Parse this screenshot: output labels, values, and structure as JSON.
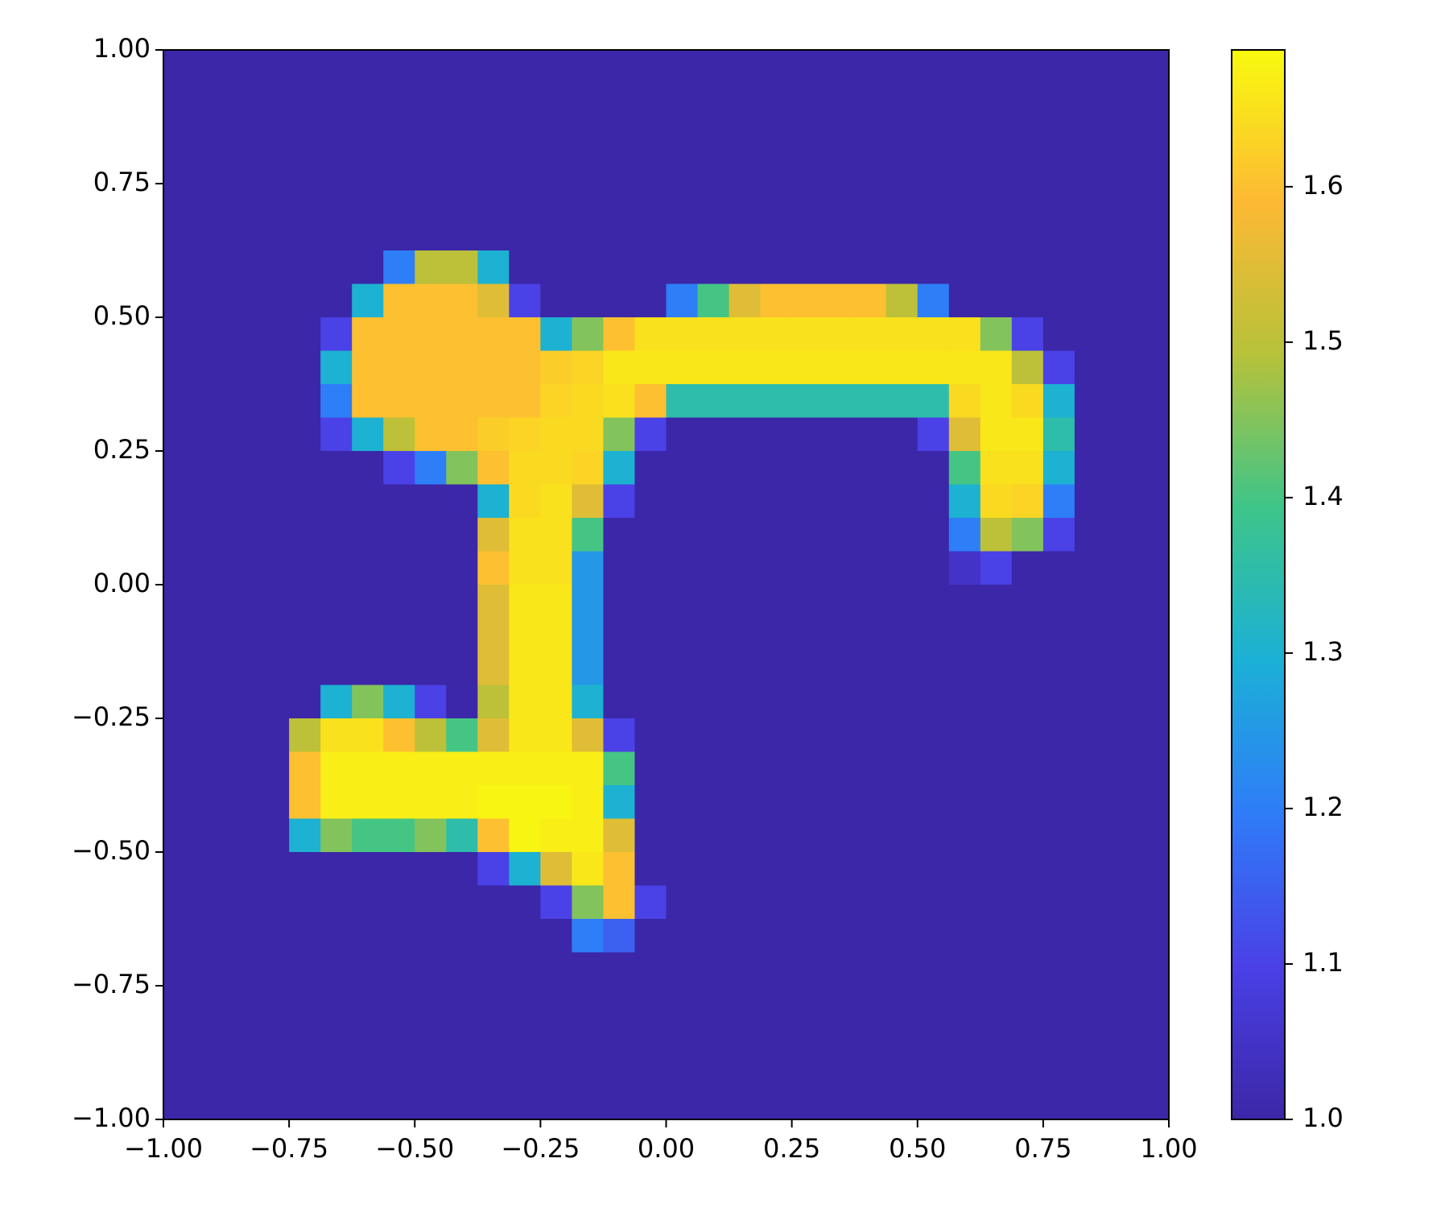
{
  "chart_data": {
    "type": "heatmap",
    "xlim": [
      -1,
      1
    ],
    "ylim": [
      -1,
      1
    ],
    "xticks": [
      {
        "value": -1,
        "label": "−1.00"
      },
      {
        "value": -0.75,
        "label": "−0.75"
      },
      {
        "value": -0.5,
        "label": "−0.50"
      },
      {
        "value": -0.25,
        "label": "−0.25"
      },
      {
        "value": 0,
        "label": "0.00"
      },
      0.25,
      {
        "value": 0.5,
        "label": "0.50"
      },
      0.75,
      {
        "value": 1,
        "label": "1.00"
      }
    ],
    "yticks": [
      {
        "value": -1,
        "label": "−1.00"
      },
      {
        "value": -0.75,
        "label": "−0.75"
      },
      {
        "value": -0.5,
        "label": "−0.50"
      },
      {
        "value": -0.25,
        "label": "−0.25"
      },
      {
        "value": 0,
        "label": "0.00"
      },
      0.25,
      {
        "value": 0.5,
        "label": "0.50"
      },
      0.75,
      {
        "value": 1,
        "label": "1.00"
      }
    ],
    "colormap": [
      "#3b27a7",
      "#4a40e6",
      "#2f7cf8",
      "#1bb0d6",
      "#3dc58a",
      "#b6c23a",
      "#fdb934",
      "#f8fa0f"
    ],
    "colorbar": {
      "lim": [
        1.0,
        1.688
      ],
      "ticks": [
        {
          "value": 1.0,
          "label": "1.0"
        },
        1.1,
        1.2,
        1.3,
        1.4,
        1.5,
        1.6
      ]
    },
    "z": [
      [
        1,
        1,
        1,
        1,
        1,
        1,
        1,
        1,
        1,
        1,
        1,
        1,
        1,
        1,
        1,
        1,
        1,
        1,
        1,
        1,
        1,
        1,
        1,
        1,
        1,
        1,
        1,
        1,
        1,
        1,
        1,
        1
      ],
      [
        1,
        1,
        1,
        1,
        1,
        1,
        1,
        1,
        1,
        1,
        1,
        1,
        1,
        1,
        1,
        1,
        1,
        1,
        1,
        1,
        1,
        1,
        1,
        1,
        1,
        1,
        1,
        1,
        1,
        1,
        1,
        1
      ],
      [
        1,
        1,
        1,
        1,
        1,
        1,
        1,
        1,
        1,
        1,
        1,
        1,
        1,
        1,
        1,
        1,
        1,
        1,
        1,
        1,
        1,
        1,
        1,
        1,
        1,
        1,
        1,
        1,
        1,
        1,
        1,
        1
      ],
      [
        1,
        1,
        1,
        1,
        1,
        1,
        1,
        1,
        1,
        1,
        1,
        1,
        1,
        1,
        1,
        1,
        1,
        1,
        1,
        1,
        1,
        1,
        1,
        1,
        1,
        1,
        1,
        1,
        1,
        1,
        1,
        1
      ],
      [
        1,
        1,
        1,
        1,
        1,
        1,
        1,
        1,
        1,
        1,
        1,
        1,
        1,
        1,
        1,
        1,
        1,
        1,
        1,
        1,
        1,
        1,
        1,
        1,
        1,
        1,
        1,
        1,
        1,
        1,
        1,
        1
      ],
      [
        1,
        1,
        1,
        1,
        1,
        1,
        1,
        1,
        1,
        1,
        1,
        1,
        1,
        1,
        1,
        1,
        1,
        1,
        1,
        1,
        1,
        1,
        1,
        1,
        1,
        1,
        1,
        1,
        1,
        1,
        1,
        1
      ],
      [
        1,
        1,
        1,
        1,
        1,
        1,
        1,
        1.2,
        1.5,
        1.5,
        1.3,
        1,
        1,
        1,
        1,
        1,
        1,
        1,
        1,
        1,
        1,
        1,
        1,
        1,
        1,
        1,
        1,
        1,
        1,
        1,
        1,
        1
      ],
      [
        1,
        1,
        1,
        1,
        1,
        1,
        1.3,
        1.6,
        1.6,
        1.6,
        1.55,
        1.1,
        1,
        1,
        1,
        1,
        1.2,
        1.4,
        1.55,
        1.6,
        1.6,
        1.6,
        1.6,
        1.5,
        1.2,
        1,
        1,
        1,
        1,
        1,
        1,
        1
      ],
      [
        1,
        1,
        1,
        1,
        1,
        1.1,
        1.6,
        1.6,
        1.6,
        1.6,
        1.6,
        1.6,
        1.3,
        1.45,
        1.6,
        1.65,
        1.65,
        1.65,
        1.65,
        1.65,
        1.65,
        1.65,
        1.65,
        1.65,
        1.65,
        1.65,
        1.45,
        1.1,
        1,
        1,
        1,
        1
      ],
      [
        1,
        1,
        1,
        1,
        1,
        1.3,
        1.6,
        1.6,
        1.6,
        1.6,
        1.6,
        1.6,
        1.62,
        1.63,
        1.66,
        1.66,
        1.66,
        1.66,
        1.66,
        1.66,
        1.66,
        1.66,
        1.66,
        1.66,
        1.66,
        1.66,
        1.66,
        1.5,
        1.1,
        1,
        1,
        1
      ],
      [
        1,
        1,
        1,
        1,
        1,
        1.2,
        1.6,
        1.6,
        1.6,
        1.6,
        1.6,
        1.6,
        1.63,
        1.64,
        1.65,
        1.6,
        1.35,
        1.35,
        1.35,
        1.35,
        1.35,
        1.35,
        1.35,
        1.35,
        1.35,
        1.64,
        1.66,
        1.64,
        1.3,
        1,
        1,
        1
      ],
      [
        1,
        1,
        1,
        1,
        1,
        1.1,
        1.3,
        1.5,
        1.6,
        1.6,
        1.62,
        1.63,
        1.64,
        1.64,
        1.45,
        1.1,
        1,
        1,
        1,
        1,
        1,
        1,
        1,
        1,
        1.1,
        1.55,
        1.66,
        1.66,
        1.35,
        1,
        1,
        1
      ],
      [
        1,
        1,
        1,
        1,
        1,
        1,
        1,
        1.1,
        1.2,
        1.45,
        1.6,
        1.64,
        1.64,
        1.63,
        1.3,
        1,
        1,
        1,
        1,
        1,
        1,
        1,
        1,
        1,
        1,
        1.4,
        1.65,
        1.65,
        1.3,
        1,
        1,
        1
      ],
      [
        1,
        1,
        1,
        1,
        1,
        1,
        1,
        1,
        1,
        1,
        1.3,
        1.64,
        1.65,
        1.55,
        1.1,
        1,
        1,
        1,
        1,
        1,
        1,
        1,
        1,
        1,
        1,
        1.3,
        1.64,
        1.63,
        1.2,
        1,
        1,
        1
      ],
      [
        1,
        1,
        1,
        1,
        1,
        1,
        1,
        1,
        1,
        1,
        1.55,
        1.65,
        1.65,
        1.4,
        1,
        1,
        1,
        1,
        1,
        1,
        1,
        1,
        1,
        1,
        1,
        1.2,
        1.5,
        1.45,
        1.1,
        1,
        1,
        1
      ],
      [
        1,
        1,
        1,
        1,
        1,
        1,
        1,
        1,
        1,
        1,
        1.6,
        1.65,
        1.65,
        1.25,
        1,
        1,
        1,
        1,
        1,
        1,
        1,
        1,
        1,
        1,
        1,
        1.05,
        1.1,
        1,
        1,
        1,
        1,
        1
      ],
      [
        1,
        1,
        1,
        1,
        1,
        1,
        1,
        1,
        1,
        1,
        1.55,
        1.66,
        1.66,
        1.25,
        1,
        1,
        1,
        1,
        1,
        1,
        1,
        1,
        1,
        1,
        1,
        1,
        1,
        1,
        1,
        1,
        1,
        1
      ],
      [
        1,
        1,
        1,
        1,
        1,
        1,
        1,
        1,
        1,
        1,
        1.55,
        1.66,
        1.66,
        1.25,
        1,
        1,
        1,
        1,
        1,
        1,
        1,
        1,
        1,
        1,
        1,
        1,
        1,
        1,
        1,
        1,
        1,
        1
      ],
      [
        1,
        1,
        1,
        1,
        1,
        1,
        1,
        1,
        1,
        1,
        1.55,
        1.66,
        1.66,
        1.25,
        1,
        1,
        1,
        1,
        1,
        1,
        1,
        1,
        1,
        1,
        1,
        1,
        1,
        1,
        1,
        1,
        1,
        1
      ],
      [
        1,
        1,
        1,
        1,
        1,
        1.3,
        1.45,
        1.3,
        1.1,
        1,
        1.5,
        1.66,
        1.66,
        1.3,
        1,
        1,
        1,
        1,
        1,
        1,
        1,
        1,
        1,
        1,
        1,
        1,
        1,
        1,
        1,
        1,
        1,
        1
      ],
      [
        1,
        1,
        1,
        1,
        1.5,
        1.65,
        1.65,
        1.6,
        1.5,
        1.4,
        1.55,
        1.66,
        1.66,
        1.55,
        1.1,
        1,
        1,
        1,
        1,
        1,
        1,
        1,
        1,
        1,
        1,
        1,
        1,
        1,
        1,
        1,
        1,
        1
      ],
      [
        1,
        1,
        1,
        1,
        1.6,
        1.67,
        1.67,
        1.67,
        1.67,
        1.67,
        1.67,
        1.67,
        1.67,
        1.67,
        1.4,
        1,
        1,
        1,
        1,
        1,
        1,
        1,
        1,
        1,
        1,
        1,
        1,
        1,
        1,
        1,
        1,
        1
      ],
      [
        1,
        1,
        1,
        1,
        1.6,
        1.67,
        1.67,
        1.67,
        1.67,
        1.67,
        1.68,
        1.68,
        1.68,
        1.67,
        1.3,
        1,
        1,
        1,
        1,
        1,
        1,
        1,
        1,
        1,
        1,
        1,
        1,
        1,
        1,
        1,
        1,
        1
      ],
      [
        1,
        1,
        1,
        1,
        1.3,
        1.45,
        1.4,
        1.4,
        1.45,
        1.35,
        1.6,
        1.68,
        1.67,
        1.67,
        1.55,
        1,
        1,
        1,
        1,
        1,
        1,
        1,
        1,
        1,
        1,
        1,
        1,
        1,
        1,
        1,
        1,
        1
      ],
      [
        1,
        1,
        1,
        1,
        1,
        1,
        1,
        1,
        1,
        1,
        1.1,
        1.3,
        1.55,
        1.66,
        1.6,
        1,
        1,
        1,
        1,
        1,
        1,
        1,
        1,
        1,
        1,
        1,
        1,
        1,
        1,
        1,
        1,
        1
      ],
      [
        1,
        1,
        1,
        1,
        1,
        1,
        1,
        1,
        1,
        1,
        1,
        1,
        1.1,
        1.45,
        1.6,
        1.1,
        1,
        1,
        1,
        1,
        1,
        1,
        1,
        1,
        1,
        1,
        1,
        1,
        1,
        1,
        1,
        1
      ],
      [
        1,
        1,
        1,
        1,
        1,
        1,
        1,
        1,
        1,
        1,
        1,
        1,
        1,
        1.2,
        1.15,
        1,
        1,
        1,
        1,
        1,
        1,
        1,
        1,
        1,
        1,
        1,
        1,
        1,
        1,
        1,
        1,
        1
      ],
      [
        1,
        1,
        1,
        1,
        1,
        1,
        1,
        1,
        1,
        1,
        1,
        1,
        1,
        1,
        1,
        1,
        1,
        1,
        1,
        1,
        1,
        1,
        1,
        1,
        1,
        1,
        1,
        1,
        1,
        1,
        1,
        1
      ],
      [
        1,
        1,
        1,
        1,
        1,
        1,
        1,
        1,
        1,
        1,
        1,
        1,
        1,
        1,
        1,
        1,
        1,
        1,
        1,
        1,
        1,
        1,
        1,
        1,
        1,
        1,
        1,
        1,
        1,
        1,
        1,
        1
      ],
      [
        1,
        1,
        1,
        1,
        1,
        1,
        1,
        1,
        1,
        1,
        1,
        1,
        1,
        1,
        1,
        1,
        1,
        1,
        1,
        1,
        1,
        1,
        1,
        1,
        1,
        1,
        1,
        1,
        1,
        1,
        1,
        1
      ],
      [
        1,
        1,
        1,
        1,
        1,
        1,
        1,
        1,
        1,
        1,
        1,
        1,
        1,
        1,
        1,
        1,
        1,
        1,
        1,
        1,
        1,
        1,
        1,
        1,
        1,
        1,
        1,
        1,
        1,
        1,
        1,
        1
      ],
      [
        1,
        1,
        1,
        1,
        1,
        1,
        1,
        1,
        1,
        1,
        1,
        1,
        1,
        1,
        1,
        1,
        1,
        1,
        1,
        1,
        1,
        1,
        1,
        1,
        1,
        1,
        1,
        1,
        1,
        1,
        1,
        1
      ]
    ]
  }
}
